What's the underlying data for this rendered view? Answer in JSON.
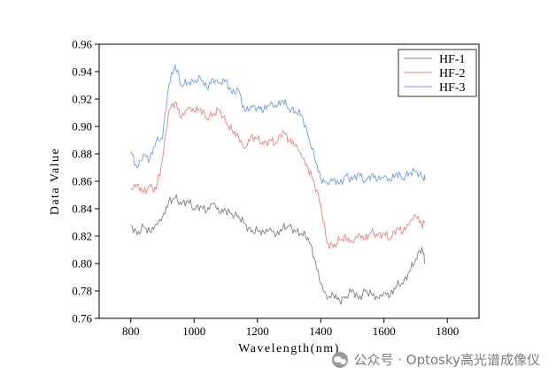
{
  "chart_data": {
    "type": "line",
    "title": "",
    "xlabel": "Wavelength(nm)",
    "ylabel": "Data Value",
    "xlim": [
      700,
      1900
    ],
    "ylim": [
      0.76,
      0.96
    ],
    "xticks": [
      800,
      1000,
      1200,
      1400,
      1600,
      1800
    ],
    "yticks": [
      0.76,
      0.78,
      0.8,
      0.82,
      0.84,
      0.86,
      0.88,
      0.9,
      0.92,
      0.94,
      0.96
    ],
    "xtick_labels": [
      "800",
      "1000",
      "1200",
      "1400",
      "1600",
      "1800"
    ],
    "ytick_labels": [
      "0.76",
      "0.78",
      "0.80",
      "0.82",
      "0.84",
      "0.86",
      "0.88",
      "0.90",
      "0.92",
      "0.94",
      "0.96"
    ],
    "grid": false,
    "legend_position": "top-right",
    "series": [
      {
        "name": "HF-1",
        "color": "#808080",
        "x": [
          800,
          820,
          840,
          860,
          880,
          900,
          920,
          940,
          960,
          980,
          1000,
          1020,
          1040,
          1060,
          1080,
          1100,
          1120,
          1140,
          1160,
          1180,
          1200,
          1220,
          1240,
          1260,
          1280,
          1300,
          1320,
          1340,
          1360,
          1380,
          1400,
          1420,
          1440,
          1460,
          1480,
          1500,
          1520,
          1540,
          1560,
          1580,
          1600,
          1620,
          1640,
          1660,
          1680,
          1700,
          1720,
          1730
        ],
        "values": [
          0.828,
          0.821,
          0.827,
          0.823,
          0.829,
          0.834,
          0.845,
          0.848,
          0.843,
          0.846,
          0.84,
          0.842,
          0.838,
          0.844,
          0.837,
          0.839,
          0.836,
          0.835,
          0.829,
          0.823,
          0.824,
          0.823,
          0.826,
          0.821,
          0.826,
          0.827,
          0.823,
          0.822,
          0.819,
          0.804,
          0.785,
          0.774,
          0.777,
          0.773,
          0.776,
          0.781,
          0.774,
          0.78,
          0.778,
          0.775,
          0.779,
          0.777,
          0.784,
          0.785,
          0.794,
          0.803,
          0.812,
          0.8
        ]
      },
      {
        "name": "HF-2",
        "color": "#f08080",
        "x": [
          800,
          820,
          840,
          860,
          880,
          900,
          920,
          940,
          960,
          980,
          1000,
          1020,
          1040,
          1060,
          1080,
          1100,
          1120,
          1140,
          1160,
          1180,
          1200,
          1220,
          1240,
          1260,
          1280,
          1300,
          1320,
          1340,
          1360,
          1380,
          1400,
          1420,
          1440,
          1460,
          1480,
          1500,
          1520,
          1540,
          1560,
          1580,
          1600,
          1620,
          1640,
          1660,
          1680,
          1700,
          1720,
          1730
        ],
        "values": [
          0.855,
          0.858,
          0.852,
          0.856,
          0.854,
          0.876,
          0.912,
          0.918,
          0.906,
          0.913,
          0.911,
          0.913,
          0.906,
          0.909,
          0.912,
          0.903,
          0.897,
          0.893,
          0.884,
          0.893,
          0.891,
          0.887,
          0.89,
          0.888,
          0.897,
          0.89,
          0.886,
          0.878,
          0.869,
          0.859,
          0.843,
          0.815,
          0.812,
          0.817,
          0.819,
          0.816,
          0.822,
          0.818,
          0.823,
          0.82,
          0.822,
          0.818,
          0.826,
          0.823,
          0.829,
          0.835,
          0.828,
          0.831
        ]
      },
      {
        "name": "HF-3",
        "color": "#6f9fe8",
        "x": [
          800,
          820,
          840,
          860,
          880,
          900,
          920,
          940,
          960,
          980,
          1000,
          1020,
          1040,
          1060,
          1080,
          1100,
          1120,
          1140,
          1160,
          1180,
          1200,
          1220,
          1240,
          1260,
          1280,
          1300,
          1320,
          1340,
          1360,
          1380,
          1400,
          1420,
          1440,
          1460,
          1480,
          1500,
          1520,
          1540,
          1560,
          1580,
          1600,
          1620,
          1640,
          1660,
          1680,
          1700,
          1720,
          1730
        ],
        "values": [
          0.882,
          0.87,
          0.88,
          0.876,
          0.889,
          0.891,
          0.93,
          0.945,
          0.93,
          0.932,
          0.932,
          0.935,
          0.928,
          0.935,
          0.932,
          0.934,
          0.924,
          0.927,
          0.911,
          0.915,
          0.914,
          0.912,
          0.916,
          0.914,
          0.919,
          0.913,
          0.911,
          0.908,
          0.893,
          0.878,
          0.862,
          0.859,
          0.862,
          0.858,
          0.864,
          0.861,
          0.866,
          0.86,
          0.865,
          0.861,
          0.863,
          0.86,
          0.866,
          0.862,
          0.866,
          0.867,
          0.863,
          0.861
        ]
      }
    ]
  },
  "watermark": {
    "text": "公众号 · Optosky高光谱成像仪",
    "icon": "wechat-icon"
  }
}
